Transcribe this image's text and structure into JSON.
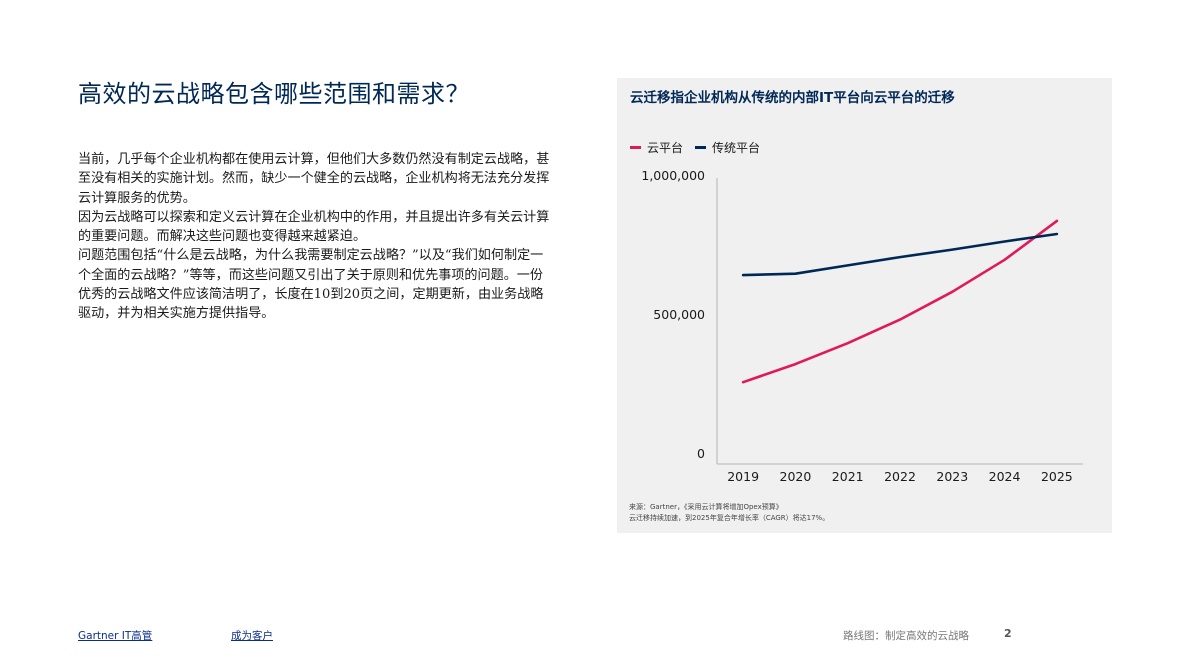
{
  "page": {
    "title": "高效的云战略包含哪些范围和需求？",
    "paragraphs": [
      "当前，几乎每个企业机构都在使用云计算，但他们大多数仍然没有制定云战略，甚至没有相关的实施计划。然而，缺少一个健全的云战略，企业机构将无法充分发挥云计算服务的优势。",
      "因为云战略可以探索和定义云计算在企业机构中的作用，并且提出许多有关云计算的重要问题。而解决这些问题也变得越来越紧迫。",
      "问题范围包括“什么是云战略，为什么我需要制定云战略？”以及“我们如何制定一个全面的云战略？”等等，而这些问题又引出了关于原则和优先事项的问题。一份优秀的云战略文件应该简洁明了，长度在10到20页之间，定期更新，由业务战略驱动，并为相关实施方提供指导。"
    ]
  },
  "chart_data": {
    "type": "line",
    "title": "云迁移指企业机构从传统的内部IT平台向云平台的迁移",
    "categories": [
      "2019",
      "2020",
      "2021",
      "2022",
      "2023",
      "2024",
      "2025"
    ],
    "series": [
      {
        "name": "云平台",
        "color": "#e0195a",
        "values": [
          280000,
          345000,
          420000,
          505000,
          605000,
          720000,
          860000
        ]
      },
      {
        "name": "传统平台",
        "color": "#002856",
        "values": [
          665000,
          670000,
          700000,
          730000,
          757000,
          786000,
          813000
        ]
      }
    ],
    "y_ticks": [
      0,
      500000,
      1000000
    ],
    "y_tick_labels": [
      "0",
      "500,000",
      "1,000,000"
    ],
    "ylim": [
      0,
      1000000
    ],
    "legend_position": "top-left",
    "grid": false,
    "source_lines": [
      "来源：Gartner，《采用云计算将增加Opex预算》",
      "云迁移持续加速，到2025年复合年增长率（CAGR）将达17%。"
    ]
  },
  "footer": {
    "link1": "Gartner IT高管",
    "link2": "成为客户",
    "doc_title": "路线图：制定高效的云战略",
    "page_number": "2"
  }
}
